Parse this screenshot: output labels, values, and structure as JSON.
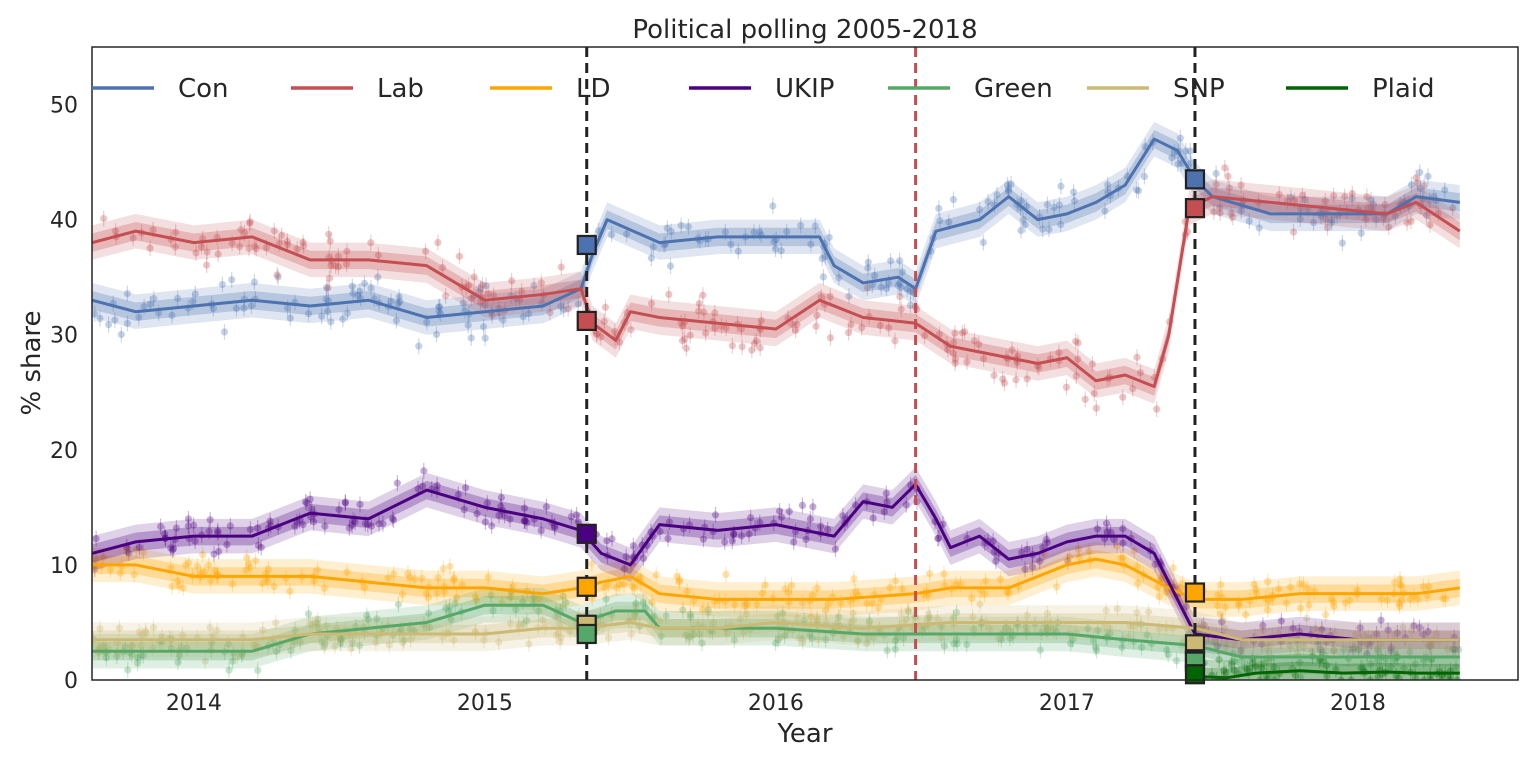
{
  "chart_data": {
    "type": "line",
    "title": "Political polling 2005-2018",
    "xlabel": "Year",
    "ylabel": "% share",
    "xlim": [
      2013.65,
      2018.55
    ],
    "ylim": [
      0,
      55
    ],
    "grid": false,
    "legend_position": "top",
    "x_ticks": [
      2014,
      2015,
      2016,
      2017,
      2018
    ],
    "y_ticks": [
      0,
      10,
      20,
      30,
      40,
      50
    ],
    "vertical_lines": [
      {
        "x": 2015.35,
        "color": "#222222",
        "style": "dashed"
      },
      {
        "x": 2016.48,
        "color": "#c44e52",
        "style": "dashed"
      },
      {
        "x": 2017.44,
        "color": "#222222",
        "style": "dashed"
      }
    ],
    "series": [
      {
        "name": "Con",
        "color": "#4c72b0",
        "x": [
          2013.65,
          2013.8,
          2014.0,
          2014.2,
          2014.4,
          2014.6,
          2014.8,
          2015.0,
          2015.2,
          2015.33,
          2015.37,
          2015.42,
          2015.6,
          2015.8,
          2016.0,
          2016.15,
          2016.2,
          2016.3,
          2016.42,
          2016.48,
          2016.55,
          2016.7,
          2016.8,
          2016.9,
          2017.0,
          2017.1,
          2017.2,
          2017.3,
          2017.38,
          2017.44,
          2017.5,
          2017.7,
          2017.9,
          2018.1,
          2018.2,
          2018.35
        ],
        "y": [
          33,
          32,
          32.5,
          33,
          32.5,
          33,
          31.5,
          32,
          32.5,
          34,
          37,
          40,
          38,
          38.5,
          38.5,
          38.5,
          36,
          34.5,
          35,
          34,
          39,
          40,
          42,
          40,
          40.5,
          41.5,
          43,
          47,
          46,
          43.5,
          42,
          40.5,
          40.5,
          40.5,
          42,
          41.5
        ]
      },
      {
        "name": "Lab",
        "color": "#c44e52",
        "x": [
          2013.65,
          2013.8,
          2014.0,
          2014.2,
          2014.4,
          2014.6,
          2014.8,
          2015.0,
          2015.2,
          2015.33,
          2015.37,
          2015.45,
          2015.5,
          2015.6,
          2015.8,
          2016.0,
          2016.15,
          2016.2,
          2016.3,
          2016.48,
          2016.6,
          2016.8,
          2016.9,
          2017.0,
          2017.1,
          2017.2,
          2017.3,
          2017.35,
          2017.42,
          2017.5,
          2017.7,
          2017.9,
          2018.1,
          2018.2,
          2018.35
        ],
        "y": [
          38,
          39,
          38,
          38.5,
          36.5,
          36.5,
          36,
          33,
          33.5,
          34,
          31,
          29.5,
          32,
          31.5,
          31,
          30.5,
          33,
          32.5,
          31.5,
          31,
          29,
          28,
          27.5,
          28,
          26,
          26.5,
          25.5,
          30,
          41,
          42,
          41.5,
          41,
          40.5,
          41.5,
          39
        ]
      },
      {
        "name": "LD",
        "color": "#ffa500",
        "x": [
          2013.65,
          2013.8,
          2014.0,
          2014.2,
          2014.4,
          2014.6,
          2014.8,
          2015.0,
          2015.2,
          2015.33,
          2015.4,
          2015.5,
          2015.6,
          2015.8,
          2016.0,
          2016.2,
          2016.48,
          2016.6,
          2016.8,
          2016.9,
          2017.0,
          2017.1,
          2017.2,
          2017.35,
          2017.44,
          2017.6,
          2017.8,
          2018.0,
          2018.2,
          2018.35
        ],
        "y": [
          10,
          10,
          9,
          9,
          9,
          8.5,
          8,
          8,
          7.5,
          8,
          8.5,
          9,
          7.5,
          7,
          7,
          7,
          7.5,
          8,
          8,
          9,
          10,
          10.5,
          10,
          8,
          7,
          7,
          7.5,
          7.5,
          7.5,
          8
        ]
      },
      {
        "name": "UKIP",
        "color": "#4b0082",
        "x": [
          2013.65,
          2013.8,
          2014.0,
          2014.2,
          2014.4,
          2014.6,
          2014.8,
          2015.0,
          2015.2,
          2015.33,
          2015.4,
          2015.5,
          2015.6,
          2015.8,
          2016.0,
          2016.2,
          2016.3,
          2016.4,
          2016.48,
          2016.55,
          2016.6,
          2016.7,
          2016.8,
          2016.9,
          2017.0,
          2017.1,
          2017.2,
          2017.3,
          2017.44,
          2017.6,
          2017.8,
          2018.0,
          2018.2,
          2018.35
        ],
        "y": [
          11,
          12,
          12.5,
          12.5,
          14.5,
          14,
          16.5,
          15,
          14,
          13,
          11,
          10,
          13.5,
          13,
          13.5,
          12.5,
          15.5,
          15,
          17,
          14,
          11.5,
          12.5,
          10.5,
          11,
          12,
          12.5,
          12.5,
          11,
          4,
          3.5,
          4,
          3.5,
          3.5,
          3.5
        ]
      },
      {
        "name": "Green",
        "color": "#55a868",
        "x": [
          2013.65,
          2013.8,
          2014.0,
          2014.2,
          2014.4,
          2014.6,
          2014.8,
          2015.0,
          2015.2,
          2015.33,
          2015.45,
          2015.55,
          2015.6,
          2015.8,
          2016.0,
          2016.3,
          2016.6,
          2016.9,
          2017.0,
          2017.2,
          2017.44,
          2017.6,
          2017.8,
          2018.0,
          2018.2,
          2018.35
        ],
        "y": [
          2.5,
          2.5,
          2.5,
          2.5,
          4,
          4.5,
          5,
          6.5,
          6.5,
          5,
          6,
          6,
          4.5,
          4.5,
          4.5,
          4,
          4,
          4,
          4,
          3.5,
          3,
          2,
          2,
          2,
          2,
          2
        ]
      },
      {
        "name": "SNP",
        "color": "#ccb974",
        "x": [
          2013.65,
          2013.8,
          2014.0,
          2014.2,
          2014.4,
          2014.6,
          2014.8,
          2015.0,
          2015.2,
          2015.33,
          2015.5,
          2015.6,
          2015.8,
          2016.0,
          2016.3,
          2016.6,
          2016.9,
          2017.0,
          2017.2,
          2017.44,
          2017.6,
          2017.8,
          2018.0,
          2018.2,
          2018.35
        ],
        "y": [
          3.5,
          3.5,
          3.5,
          3.5,
          4,
          4,
          4,
          4,
          4.5,
          4.5,
          5,
          4.5,
          4.5,
          5,
          4.5,
          5,
          5,
          5,
          5,
          4.5,
          3.5,
          3.5,
          3.5,
          3.5,
          3.5
        ]
      },
      {
        "name": "Plaid",
        "color": "#006400",
        "x": [
          2017.44,
          2017.55,
          2017.65,
          2017.8,
          2017.95,
          2018.1,
          2018.2,
          2018.35
        ],
        "y": [
          0.3,
          0.2,
          0.6,
          0.8,
          0.6,
          0.7,
          0.6,
          0.6
        ]
      }
    ],
    "markers": [
      {
        "x": 2015.35,
        "y": 37.8,
        "color": "#4c72b0"
      },
      {
        "x": 2015.35,
        "y": 31.2,
        "color": "#c44e52"
      },
      {
        "x": 2015.35,
        "y": 12.7,
        "color": "#4b0082"
      },
      {
        "x": 2015.35,
        "y": 8.1,
        "color": "#ffa500"
      },
      {
        "x": 2015.35,
        "y": 4.8,
        "color": "#ccb974"
      },
      {
        "x": 2015.35,
        "y": 4.0,
        "color": "#55a868"
      },
      {
        "x": 2017.44,
        "y": 43.5,
        "color": "#4c72b0"
      },
      {
        "x": 2017.44,
        "y": 41.0,
        "color": "#c44e52"
      },
      {
        "x": 2017.44,
        "y": 7.6,
        "color": "#ffa500"
      },
      {
        "x": 2017.44,
        "y": 3.1,
        "color": "#ccb974"
      },
      {
        "x": 2017.44,
        "y": 1.8,
        "color": "#4b0082"
      },
      {
        "x": 2017.44,
        "y": 1.6,
        "color": "#55a868"
      },
      {
        "x": 2017.44,
        "y": 0.5,
        "color": "#006400"
      }
    ]
  }
}
